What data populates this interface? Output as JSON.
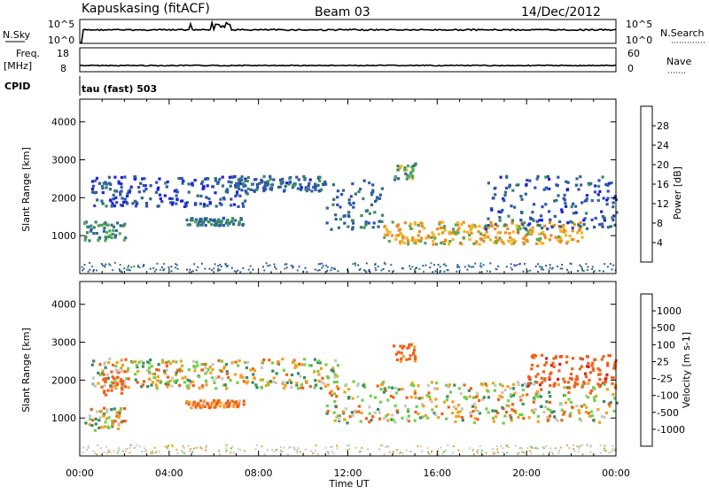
{
  "header": {
    "station": "Kapuskasing (fitACF)",
    "beam": "Beam 03",
    "date": "14/Dec/2012"
  },
  "top_strip": {
    "nsky_label": "N.Sky",
    "nsky_ticks": [
      "10^5",
      "10^0"
    ],
    "nsearch_label": "N.Search",
    "nsearch_ticks": [
      "10^5",
      "10^0"
    ],
    "freq_label": "Freq.",
    "freq_unit": "[MHz]",
    "freq_ticks": [
      "18",
      "8"
    ],
    "nave_label": "Nave",
    "nave_ticks": [
      "60",
      "0"
    ],
    "cpid_label": "CPID",
    "cpid_value": "tau (fast) 503"
  },
  "colors": {
    "power": [
      "#1e1ee6",
      "#2e4fb8",
      "#2f6a8a",
      "#3a8a62",
      "#56a85a",
      "#f2b422",
      "#f08a1c",
      "#ee5a1a",
      "#e82222"
    ],
    "velocity": [
      "#e81818",
      "#f0601a",
      "#f4a020",
      "#c8c8c0",
      "#c8c8c0",
      "#6fd04a",
      "#3a8a62",
      "#2f5fa8",
      "#1a2ee0"
    ]
  },
  "chart_data": [
    {
      "type": "heatmap",
      "title": "Power",
      "xlabel": "Time UT",
      "ylabel": "Slant Range [km]",
      "xlim": [
        "00:00",
        "24:00"
      ],
      "ylim": [
        0,
        4600
      ],
      "xticks": [
        "00:00",
        "04:00",
        "08:00",
        "12:00",
        "16:00",
        "20:00",
        "00:00"
      ],
      "yticks": [
        1000,
        2000,
        3000,
        4000
      ],
      "colorbar": {
        "label": "Power [dB]",
        "ticks": [
          "4",
          "8",
          "12",
          "16",
          "20",
          "24",
          "28"
        ]
      },
      "regions": [
        {
          "x": [
            0.5,
            7.5
          ],
          "range": [
            1800,
            2600
          ],
          "value_db": 6
        },
        {
          "x": [
            6.8,
            11.0
          ],
          "range": [
            2200,
            2600
          ],
          "value_db": 8
        },
        {
          "x": [
            11.0,
            13.5
          ],
          "range": [
            1200,
            2500
          ],
          "value_db": 9
        },
        {
          "x": [
            0.1,
            2.0
          ],
          "range": [
            900,
            1400
          ],
          "value_db": 12
        },
        {
          "x": [
            4.7,
            7.3
          ],
          "range": [
            1300,
            1500
          ],
          "value_db": 10
        },
        {
          "x": [
            13.5,
            22.5
          ],
          "range": [
            800,
            1400
          ],
          "value_db": 20
        },
        {
          "x": [
            14.0,
            15.0
          ],
          "range": [
            2500,
            3000
          ],
          "value_db": 14
        },
        {
          "x": [
            18.0,
            24.0
          ],
          "range": [
            1200,
            2600
          ],
          "value_db": 7
        }
      ]
    },
    {
      "type": "heatmap",
      "title": "Velocity",
      "xlabel": "Time UT",
      "ylabel": "Slant Range [km]",
      "xlim": [
        "00:00",
        "24:00"
      ],
      "ylim": [
        0,
        4600
      ],
      "xticks": [
        "00:00",
        "04:00",
        "08:00",
        "12:00",
        "16:00",
        "20:00",
        "00:00"
      ],
      "yticks": [
        1000,
        2000,
        3000,
        4000
      ],
      "colorbar": {
        "label": "Velocity [m s-1]",
        "ticks": [
          "1000",
          "500",
          "100",
          "25",
          "-25",
          "-100",
          "-500",
          "-1000"
        ]
      },
      "regions": [
        {
          "x": [
            0.5,
            11.5
          ],
          "range": [
            1800,
            2600
          ],
          "value_ms": 0
        },
        {
          "x": [
            11.0,
            24.0
          ],
          "range": [
            900,
            2000
          ],
          "value_ms": 0
        },
        {
          "x": [
            0.1,
            2.0
          ],
          "range": [
            700,
            1300
          ],
          "value_ms": 0
        },
        {
          "x": [
            1.0,
            2.0
          ],
          "range": [
            1600,
            2200
          ],
          "value_ms": -300
        },
        {
          "x": [
            4.7,
            7.3
          ],
          "range": [
            1300,
            1500
          ],
          "value_ms": -150
        },
        {
          "x": [
            14.0,
            15.0
          ],
          "range": [
            2500,
            3000
          ],
          "value_ms": -200
        },
        {
          "x": [
            20.0,
            24.0
          ],
          "range": [
            1800,
            2700
          ],
          "value_ms": -400
        }
      ]
    }
  ]
}
